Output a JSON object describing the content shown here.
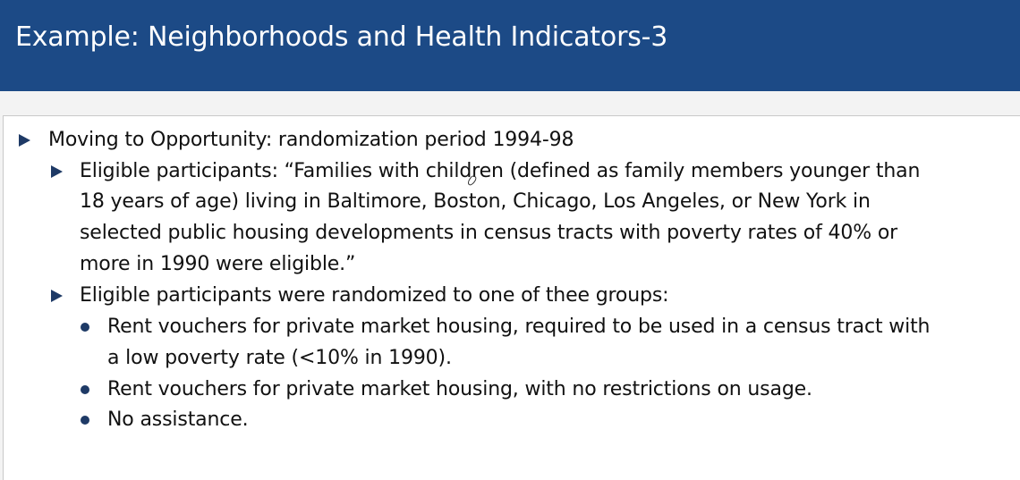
{
  "slide": {
    "title": "Example: Neighborhoods and Health Indicators-3",
    "bullets": {
      "main": "Moving to Opportunity:  randomization period 1994-98",
      "eligible": [
        "Eligible participants: “Families with children (defined as family members younger than",
        "18 years of age) living in Baltimore, Boston, Chicago, Los Angeles, or New York in",
        "selected public housing developments in census tracts with poverty rates of 40% or",
        "more in 1990 were eligible.”"
      ],
      "randomized": "Eligible participants were randomized to one of thee groups:",
      "groups": [
        [
          "Rent vouchers for private market housing, required to be used  in a census tract with",
          "a low poverty rate (<10% in 1990)."
        ],
        [
          "Rent vouchers for private market housing, with no restrictions on usage."
        ],
        [
          "No assistance."
        ]
      ]
    }
  },
  "colors": {
    "title_bar": "#1c4a86",
    "bullet": "#1e3a66"
  }
}
